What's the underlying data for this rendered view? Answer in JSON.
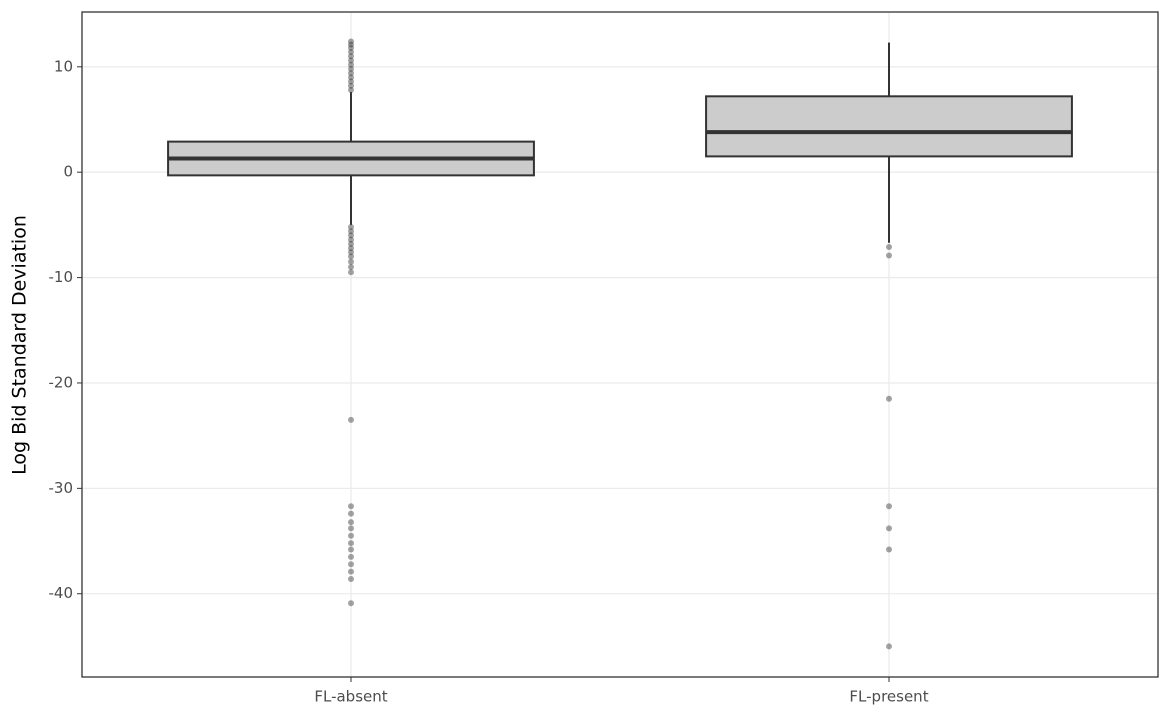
{
  "chart_data": {
    "type": "box",
    "y_label": "Log Bid Standard Deviation",
    "categories": [
      "FL-absent",
      "FL-present"
    ],
    "boxes": [
      {
        "low": -5.0,
        "q1": -0.3,
        "median": 1.3,
        "q3": 2.9,
        "high": 7.6,
        "outliers": [
          7.8,
          8.2,
          8.6,
          9.0,
          9.4,
          9.8,
          10.2,
          10.6,
          11.0,
          11.4,
          11.8,
          12.1,
          12.4,
          -5.2,
          -5.6,
          -6.0,
          -6.4,
          -6.8,
          -7.2,
          -7.6,
          -8.0,
          -8.5,
          -9.0,
          -9.5,
          -23.5,
          -31.7,
          -32.4,
          -33.2,
          -33.8,
          -34.5,
          -35.2,
          -35.8,
          -36.5,
          -37.2,
          -37.9,
          -38.6,
          -40.9
        ]
      },
      {
        "low": -6.7,
        "q1": 1.5,
        "median": 3.8,
        "q3": 7.2,
        "high": 12.3,
        "outliers": [
          -7.1,
          -7.9,
          -21.5,
          -31.7,
          -33.8,
          -35.8,
          -45.0
        ]
      }
    ],
    "fill": "#cccccc",
    "stroke": "#333333",
    "ylim": [
      -47.9,
      15.2
    ],
    "yticks": [
      -40,
      -30,
      -20,
      -10,
      0,
      10
    ],
    "grid": true
  }
}
